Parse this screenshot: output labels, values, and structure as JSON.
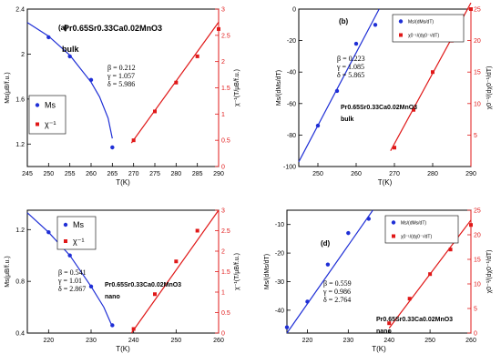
{
  "figure": {
    "panels": [
      {
        "id": "a",
        "label": "(a)",
        "title": "Pr0.65Sr0.33Ca0.02MnO3",
        "subtitle": "bulk",
        "xlabel": "T(K)",
        "ylabel_left": "Ms(μB/f.u.)",
        "ylabel_right": "χ⁻¹(T/μB/f.u.)",
        "params": [
          "β = 0.212",
          "γ = 1.057",
          "δ = 5.986"
        ],
        "legend": [
          {
            "label": "Ms"
          },
          {
            "label": "χ⁻¹"
          }
        ]
      },
      {
        "id": "b",
        "label": "(b)",
        "title": "Pr0.65Sr0.33Ca0.02MnO3",
        "subtitle": "bulk",
        "xlabel": "T(K)",
        "ylabel_left": "Ms/(dMs/dT)",
        "ylabel_right": "χ0⁻¹/(dχ0⁻¹/dT)",
        "params": [
          "β = 0.223",
          "γ = 1.085",
          "δ = 5.865"
        ],
        "legend": [
          {
            "label": "Ms/(dMs/dT)"
          },
          {
            "label": "χ0⁻¹/(dχ0⁻¹/dT)"
          }
        ]
      },
      {
        "id": "c",
        "label": "(c)",
        "title": "Pr0.65Sr0.33Ca0.02MnO3",
        "subtitle": "nano",
        "xlabel": "T(K)",
        "ylabel_left": "Ms(μB/f.u.)",
        "ylabel_right": "χ⁻¹(T/μB/f.u.)",
        "params": [
          "β = 0.541",
          "γ = 1.01",
          "δ = 2.867"
        ],
        "legend": [
          {
            "label": "Ms"
          },
          {
            "label": "χ⁻¹"
          }
        ]
      },
      {
        "id": "d",
        "label": "(d)",
        "title": "Pr0.65Sr0.33Ca0.02MnO3",
        "subtitle": "nano",
        "xlabel": "T(K)",
        "ylabel_left": "Ms/(dMs/dT)",
        "ylabel_right": "χ0⁻¹/(dχ0⁻¹/dT)",
        "params": [
          "β = 0.559",
          "γ = 0.986",
          "δ = 2.764"
        ],
        "legend": [
          {
            "label": "Ms/(dMs/dT)"
          },
          {
            "label": "χ0⁻¹/(dχ0⁻¹/dT)"
          }
        ]
      }
    ]
  },
  "chart_data": [
    {
      "type": "scatter",
      "panel": "a",
      "colors": {
        "left": "#1f2fd6",
        "right": "#e01818"
      },
      "xlim": [
        245,
        290
      ],
      "xticks": [
        245,
        250,
        255,
        260,
        265,
        270,
        275,
        280,
        285,
        290
      ],
      "ylim_left": [
        1.0,
        2.4
      ],
      "yticks_left": [
        1.2,
        1.6,
        2.0,
        2.4
      ],
      "ylim_right": [
        0,
        3.0
      ],
      "yticks_right": [
        0.0,
        0.5,
        1.0,
        1.5,
        2.0,
        2.5,
        3.0
      ],
      "series": [
        {
          "name": "Ms",
          "axis": "left",
          "color": "#1f2fd6",
          "x": [
            250,
            255,
            260,
            265
          ],
          "y": [
            2.15,
            1.98,
            1.77,
            1.17
          ],
          "fit_x": [
            245,
            250,
            255,
            260,
            262,
            264,
            265
          ],
          "fit_y": [
            2.28,
            2.16,
            1.99,
            1.75,
            1.62,
            1.43,
            1.25
          ]
        },
        {
          "name": "χ⁻¹",
          "axis": "right",
          "color": "#e01818",
          "x": [
            270,
            275,
            280,
            285,
            290
          ],
          "y": [
            0.5,
            1.05,
            1.6,
            2.1,
            2.62
          ],
          "fit_x": [
            269.5,
            290
          ],
          "fit_y": [
            0.45,
            2.75
          ]
        }
      ]
    },
    {
      "type": "scatter",
      "panel": "b",
      "colors": {
        "left": "#1f2fd6",
        "right": "#e01818"
      },
      "xlim": [
        245,
        290
      ],
      "xticks": [
        250,
        260,
        270,
        280,
        290
      ],
      "ylim_left": [
        -100,
        0
      ],
      "yticks_left": [
        -100,
        -80,
        -60,
        -40,
        -20,
        0
      ],
      "ylim_right": [
        0,
        25
      ],
      "yticks_right": [
        5,
        10,
        15,
        20,
        25
      ],
      "series": [
        {
          "name": "Ms/(dMs/dT)",
          "axis": "left",
          "color": "#1f2fd6",
          "x": [
            250,
            255,
            260,
            265
          ],
          "y": [
            -74,
            -52,
            -22,
            -10
          ],
          "fit_x": [
            245,
            266
          ],
          "fit_y": [
            -97,
            0
          ]
        },
        {
          "name": "χ0⁻¹/(dχ0⁻¹/dT)",
          "axis": "right",
          "color": "#e01818",
          "x": [
            270,
            275,
            280,
            285,
            290
          ],
          "y": [
            3,
            9,
            15,
            20,
            25
          ],
          "fit_x": [
            269,
            290
          ],
          "fit_y": [
            2.5,
            26
          ]
        }
      ]
    },
    {
      "type": "scatter",
      "panel": "c",
      "colors": {
        "left": "#1f2fd6",
        "right": "#e01818"
      },
      "xlim": [
        215,
        260
      ],
      "xticks": [
        220,
        230,
        240,
        250,
        260
      ],
      "ylim_left": [
        0.4,
        1.35
      ],
      "yticks_left": [
        0.4,
        0.8,
        1.2
      ],
      "ylim_right": [
        0,
        3.0
      ],
      "yticks_right": [
        0.0,
        0.5,
        1.0,
        1.5,
        2.0,
        2.5,
        3.0
      ],
      "series": [
        {
          "name": "Ms",
          "axis": "left",
          "color": "#1f2fd6",
          "x": [
            220,
            225,
            230,
            235
          ],
          "y": [
            1.18,
            1.0,
            0.76,
            0.46
          ],
          "fit_x": [
            215,
            220,
            225,
            230,
            233,
            235
          ],
          "fit_y": [
            1.33,
            1.18,
            1.0,
            0.76,
            0.6,
            0.45
          ]
        },
        {
          "name": "χ⁻¹",
          "axis": "right",
          "color": "#e01818",
          "x": [
            240,
            245,
            250,
            255
          ],
          "y": [
            0.1,
            0.95,
            1.75,
            2.5
          ],
          "fit_x": [
            239.5,
            260
          ],
          "fit_y": [
            0.0,
            3.0
          ]
        }
      ]
    },
    {
      "type": "scatter",
      "panel": "d",
      "colors": {
        "left": "#1f2fd6",
        "right": "#e01818"
      },
      "xlim": [
        215,
        260
      ],
      "xticks": [
        220,
        230,
        240,
        250,
        260
      ],
      "ylim_left": [
        -48,
        -5
      ],
      "yticks_left": [
        -40,
        -30,
        -20,
        -10
      ],
      "ylim_right": [
        0,
        25
      ],
      "yticks_right": [
        0,
        5,
        10,
        15,
        20,
        25
      ],
      "series": [
        {
          "name": "Ms/(dMs/dT)",
          "axis": "left",
          "color": "#1f2fd6",
          "x": [
            215,
            220,
            225,
            230,
            235
          ],
          "y": [
            -46,
            -37,
            -24,
            -13,
            -8
          ],
          "fit_x": [
            215,
            236
          ],
          "fit_y": [
            -48,
            -5
          ]
        },
        {
          "name": "χ0⁻¹/(dχ0⁻¹/dT)",
          "axis": "right",
          "color": "#e01818",
          "x": [
            240,
            245,
            250,
            255,
            260
          ],
          "y": [
            2,
            7,
            12,
            17,
            22
          ],
          "fit_x": [
            240,
            260
          ],
          "fit_y": [
            1,
            23
          ]
        }
      ]
    }
  ]
}
